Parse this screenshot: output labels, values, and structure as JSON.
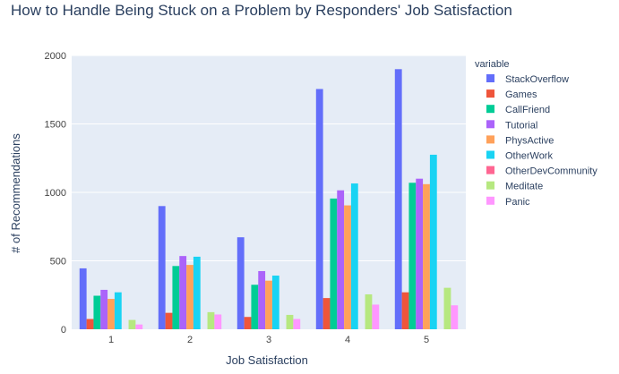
{
  "chart_data": {
    "type": "bar",
    "title": "How to Handle Being Stuck on a Problem by Responders' Job Satisfaction",
    "xlabel": "Job Satisfaction",
    "ylabel": "# of Recommendations",
    "ylim": [
      0,
      2000
    ],
    "yticks": [
      0,
      500,
      1000,
      1500,
      2000
    ],
    "categories": [
      "1",
      "2",
      "3",
      "4",
      "5"
    ],
    "grid": true,
    "legend_title": "variable",
    "legend_position": "right",
    "series": [
      {
        "name": "StackOverflow",
        "color": "#636efa",
        "values": [
          445,
          900,
          672,
          1755,
          1900
        ]
      },
      {
        "name": "Games",
        "color": "#ef553b",
        "values": [
          75,
          120,
          90,
          228,
          270
        ]
      },
      {
        "name": "CallFriend",
        "color": "#00cc96",
        "values": [
          245,
          462,
          325,
          955,
          1070
        ]
      },
      {
        "name": "Tutorial",
        "color": "#ab63fa",
        "values": [
          288,
          535,
          425,
          1015,
          1100
        ]
      },
      {
        "name": "PhysActive",
        "color": "#ffa15a",
        "values": [
          222,
          470,
          355,
          905,
          1060
        ]
      },
      {
        "name": "OtherWork",
        "color": "#19d3f3",
        "values": [
          270,
          530,
          392,
          1065,
          1275
        ]
      },
      {
        "name": "OtherDevCommunity",
        "color": "#ff6692",
        "values": [
          0,
          0,
          0,
          0,
          0
        ]
      },
      {
        "name": "Meditate",
        "color": "#b6e880",
        "values": [
          68,
          125,
          105,
          255,
          303
        ]
      },
      {
        "name": "Panic",
        "color": "#ff97ff",
        "values": [
          35,
          108,
          75,
          180,
          175
        ]
      }
    ]
  }
}
